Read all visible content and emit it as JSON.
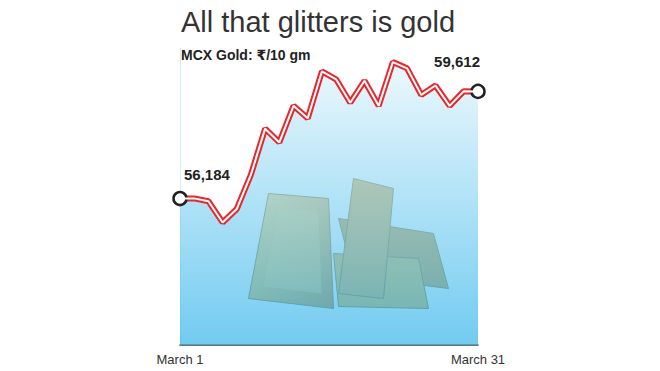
{
  "chart_data": {
    "type": "line",
    "title": "All that glitters is gold",
    "subtitle": "MCX Gold: ₹/10 gm",
    "categories": [
      "March 1",
      null,
      null,
      null,
      null,
      null,
      null,
      null,
      null,
      null,
      null,
      null,
      null,
      null,
      null,
      null,
      null,
      null,
      null,
      null,
      null,
      "March 31"
    ],
    "values": [
      56184,
      56190,
      56100,
      55420,
      55850,
      56950,
      58420,
      57980,
      59150,
      58750,
      60250,
      60000,
      59250,
      59950,
      59150,
      60550,
      60350,
      59500,
      59800,
      59150,
      59620,
      59612
    ],
    "value_labels": [
      "56,184",
      null,
      null,
      null,
      null,
      null,
      null,
      null,
      null,
      null,
      null,
      null,
      null,
      null,
      null,
      null,
      null,
      null,
      null,
      null,
      null,
      "59,612"
    ],
    "data_labels": true,
    "color": "#e8262b",
    "marker": "circle",
    "ylim": [
      51500,
      61000
    ],
    "tick_labels": "x",
    "grid": false
  }
}
